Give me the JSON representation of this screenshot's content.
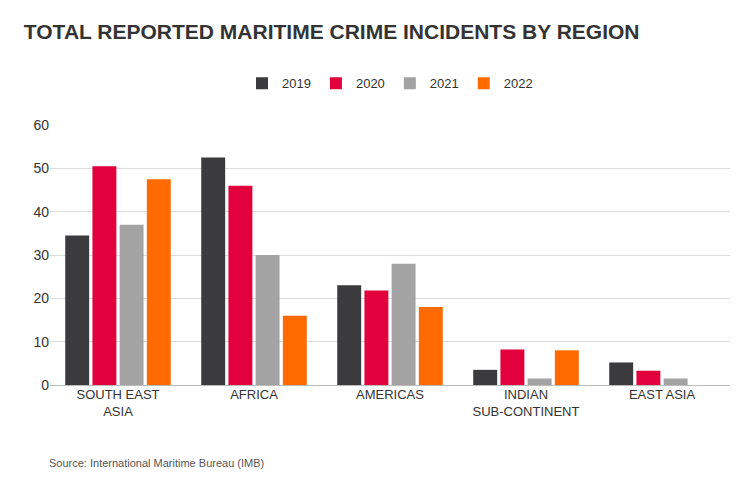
{
  "chart_data": {
    "type": "bar",
    "title": "TOTAL REPORTED MARITIME CRIME INCIDENTS BY REGION",
    "categories": [
      "SOUTH EAST\nASIA",
      "AFRICA",
      "AMERICAS",
      "INDIAN\nSUB-CONTINENT",
      "EAST ASIA"
    ],
    "series": [
      {
        "name": "2019",
        "color": "#3b3b3d",
        "values": [
          34.5,
          52.5,
          23,
          3.5,
          5.2
        ]
      },
      {
        "name": "2020",
        "color": "#e2003d",
        "values": [
          50.5,
          46,
          21.8,
          8.2,
          3.3
        ]
      },
      {
        "name": "2021",
        "color": "#a3a3a3",
        "values": [
          37,
          30,
          28,
          1.5,
          1.5
        ]
      },
      {
        "name": "2022",
        "color": "#ff6b00",
        "values": [
          47.5,
          16,
          18,
          8,
          null
        ]
      }
    ],
    "ylim": [
      0,
      60
    ],
    "yticks": [
      0,
      10,
      20,
      30,
      40,
      50,
      60
    ],
    "grid": true,
    "legend": "top",
    "annotations": [
      "Source: International Maritime Bureau (IMB)"
    ]
  }
}
